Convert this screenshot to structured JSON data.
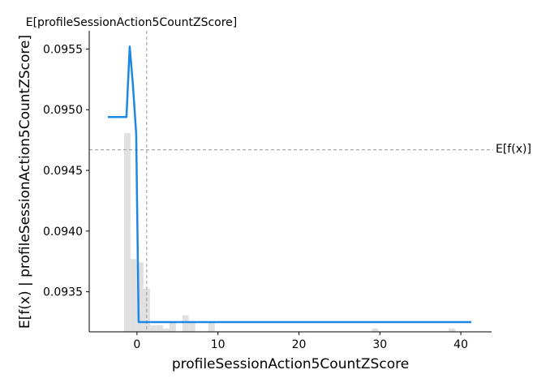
{
  "chart_data": {
    "type": "line",
    "title": "",
    "xlabel": "profileSessionAction5CountZScore",
    "ylabel": "E[f(x) | profileSessionAction5CountZScore]",
    "xlim": [
      -5.9,
      43.8
    ],
    "ylim": [
      0.09317,
      0.09565
    ],
    "x_ticks": [
      0,
      10,
      20,
      30,
      40
    ],
    "y_ticks": [
      0.0935,
      0.094,
      0.0945,
      0.095,
      0.0955
    ],
    "y_tick_labels": [
      "0.0935",
      "0.0940",
      "0.0945",
      "0.0950",
      "0.0955"
    ],
    "grid": false,
    "colors": {
      "line": "#1e88e5",
      "histogram": "#e0e0e0",
      "reference": "#999999"
    },
    "series": [
      {
        "x": [
          -3.6,
          -1.3,
          -0.9,
          -0.5,
          -0.1,
          0.2,
          3,
          10,
          20,
          30,
          41.3
        ],
        "y": [
          0.09494,
          0.09494,
          0.09552,
          0.0952,
          0.0948,
          0.09325,
          0.09325,
          0.09325,
          0.09325,
          0.09325,
          0.09325
        ]
      }
    ],
    "histogram": {
      "bin_starts": [
        -1.6,
        -0.8,
        0,
        0.8,
        1.6,
        2.4,
        3.2,
        4.0,
        4.8,
        5.6,
        6.4,
        7.2,
        8.0,
        8.8,
        9.6,
        10.4,
        11.2,
        12.0,
        29.0,
        38.5
      ],
      "bin_width": 0.8,
      "fractions": [
        0.6,
        0.22,
        0.21,
        0.13,
        0.02,
        0.02,
        0.01,
        0.03,
        0.0,
        0.05,
        0.03,
        0.0,
        0.0,
        0.03,
        0.0,
        0.0,
        0.0,
        0.0,
        0.01,
        0.01
      ]
    },
    "reference_lines": {
      "expected_value": 0.09467,
      "expected_value_label": "E[f(x)]",
      "feature_mean": 1.2,
      "feature_mean_label": "E[profileSessionAction5CountZScore]"
    }
  }
}
